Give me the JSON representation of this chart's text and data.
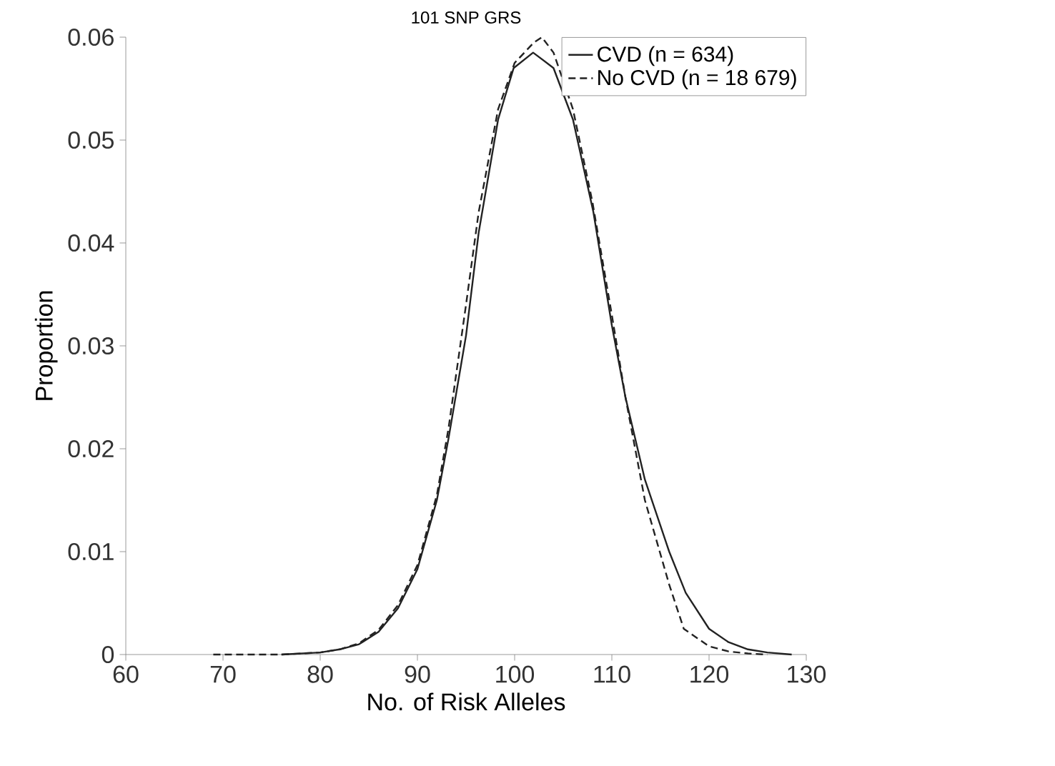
{
  "chart_data": {
    "type": "line",
    "title": "101 SNP GRS",
    "xlabel": "No. of Risk Alleles",
    "ylabel": "Proportion",
    "xlim": [
      60,
      130
    ],
    "xticks": [
      60,
      70,
      80,
      90,
      100,
      110,
      120,
      130
    ],
    "ylim": [
      0,
      0.06
    ],
    "yticks": [
      0,
      0.01,
      0.02,
      0.03,
      0.04,
      0.05,
      0.06
    ],
    "legend": "top right",
    "grid": false,
    "marker": "none",
    "series": [
      {
        "name": "CVD (n = 634)",
        "color": "#222222",
        "line_style": "solid",
        "x": [
          76,
          80,
          82,
          84,
          86,
          88,
          90,
          92,
          93.2,
          95,
          96.3,
          98.3,
          99.9,
          101.9,
          104,
          106,
          108.1,
          110,
          111.4,
          113.4,
          115.9,
          117.6,
          120,
          122,
          124,
          126,
          128.5
        ],
        "values": [
          0,
          0.0002,
          0.0005,
          0.001,
          0.0022,
          0.0045,
          0.0083,
          0.015,
          0.021,
          0.031,
          0.041,
          0.052,
          0.057,
          0.0585,
          0.057,
          0.052,
          0.043,
          0.032,
          0.025,
          0.017,
          0.01,
          0.006,
          0.0025,
          0.0012,
          0.0005,
          0.0002,
          0
        ]
      },
      {
        "name": "No CVD (n = 18 679)",
        "color": "#222222",
        "line_style": "dashed",
        "x": [
          69,
          76,
          80,
          82,
          84,
          86,
          88,
          90,
          92,
          93.2,
          95,
          96.3,
          98.3,
          100,
          102,
          102.8,
          104,
          106,
          108,
          110,
          111.4,
          113.4,
          115.9,
          117.4,
          120,
          122,
          124,
          126
        ],
        "values": [
          0,
          0,
          0.0002,
          0.0005,
          0.0011,
          0.0024,
          0.0048,
          0.0087,
          0.0155,
          0.022,
          0.034,
          0.043,
          0.053,
          0.0575,
          0.0595,
          0.06,
          0.0585,
          0.053,
          0.044,
          0.033,
          0.025,
          0.015,
          0.0068,
          0.0025,
          0.0008,
          0.0003,
          0.0001,
          0
        ]
      }
    ]
  }
}
